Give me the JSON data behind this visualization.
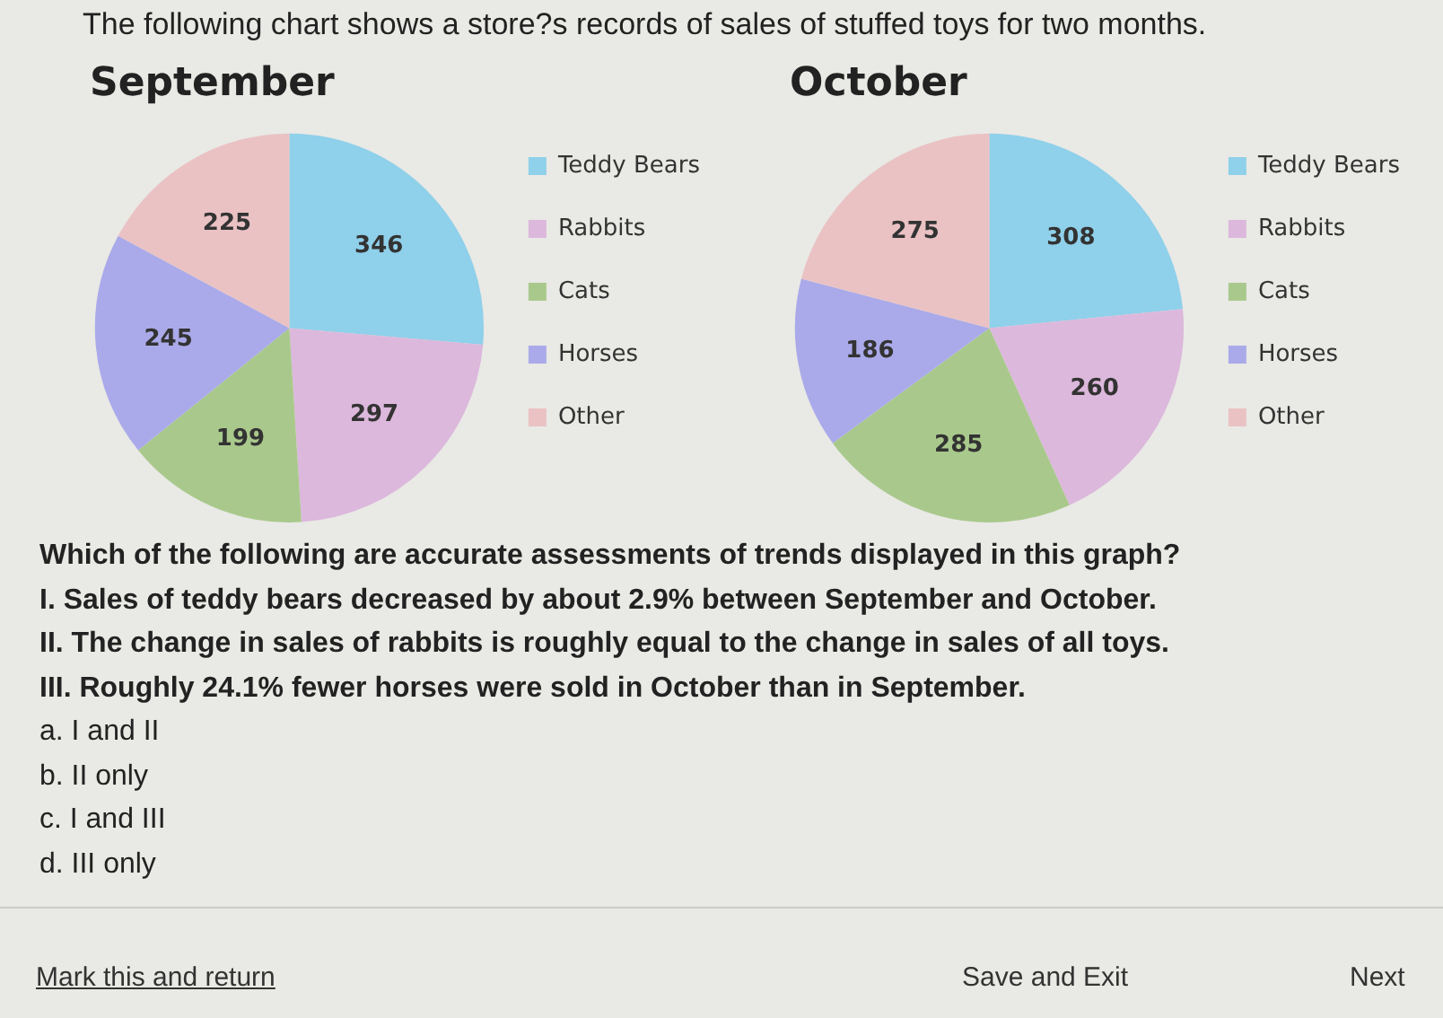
{
  "chart_data": [
    {
      "type": "pie",
      "title": "September",
      "categories": [
        "Teddy Bears",
        "Rabbits",
        "Cats",
        "Horses",
        "Other"
      ],
      "values": [
        346,
        297,
        199,
        245,
        225
      ],
      "colors": [
        "#8fd0ea",
        "#dcb8dc",
        "#a9c98c",
        "#aaaaea",
        "#eac2c4"
      ],
      "data_labels": true,
      "legend": "right",
      "annotations": [
        "The following chart shows a store?s records of sales of stuffed toys for two months."
      ]
    },
    {
      "type": "pie",
      "title": "October",
      "categories": [
        "Teddy Bears",
        "Rabbits",
        "Cats",
        "Horses",
        "Other"
      ],
      "values": [
        308,
        260,
        285,
        186,
        275
      ],
      "colors": [
        "#8fd0ea",
        "#dcb8dc",
        "#a9c98c",
        "#aaaaea",
        "#eac2c4"
      ],
      "data_labels": true,
      "legend": "right",
      "annotations": [
        "Which of the following are accurate assessments of trends displayed in this graph?",
        "I. Sales of teddy bears decreased by about 2.9% between September and October.",
        "II. The change in sales of rabbits is roughly equal to the change in sales of all toys.",
        "III. Roughly 24.1% fewer horses were sold in October than in September.",
        "a.  I and II",
        "b.  II only",
        "c.  I and III",
        "d.  III only",
        "Mark this and return",
        "Save and Exit",
        "Next"
      ]
    }
  ]
}
